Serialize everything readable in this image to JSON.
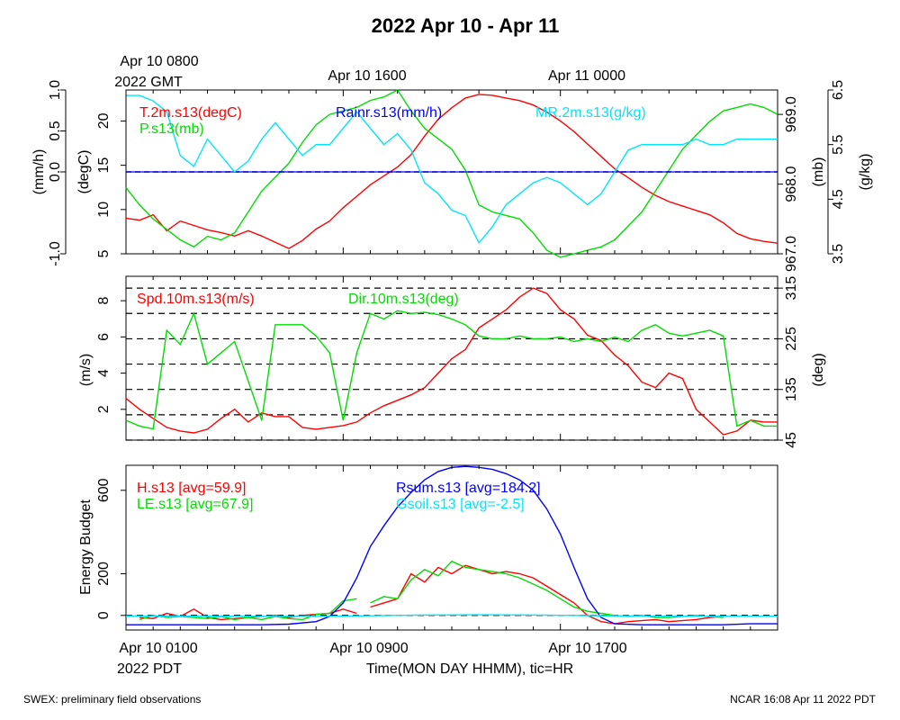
{
  "title": "2022 Apr 10 - Apr 11",
  "top_time_labels": [
    {
      "x": 0,
      "line1": "Apr 10 0800",
      "line2": "2022 GMT"
    },
    {
      "x": 8,
      "line1": "Apr 10 1600",
      "line2": ""
    },
    {
      "x": 16,
      "line1": "Apr 11 0000",
      "line2": ""
    }
  ],
  "bottom_time_labels": [
    {
      "x": 0,
      "line1": "Apr 10 0100",
      "line2": "2022 PDT"
    },
    {
      "x": 8,
      "line1": "Apr 10 0900",
      "line2": ""
    },
    {
      "x": 16,
      "line1": "Apr 10 1700",
      "line2": ""
    }
  ],
  "xlabel": "Time(MON DAY HHMM), tic=HR",
  "footer_left": "SWEX: preliminary field observations",
  "footer_right": "NCAR 16:08 Apr 11 2022 PDT",
  "colors": {
    "red": "#ff0000",
    "green": "#00dd00",
    "blue": "#0000ff",
    "cyan": "#00e5ff",
    "black": "#000000"
  },
  "chart_data": [
    {
      "type": "line",
      "panel": "thermo",
      "x_range": [
        0,
        24
      ],
      "axes": {
        "rain": {
          "label": "(mm/h)",
          "range": [
            -1.0,
            1.0
          ],
          "ticks": [
            "-1.0",
            "0.0",
            "0.5",
            "1.0"
          ],
          "tick_values": [
            -1.0,
            0.0,
            0.5,
            1.0
          ]
        },
        "temp": {
          "label": "(degC)",
          "range": [
            5,
            23.5
          ],
          "ticks": [
            "5",
            "10",
            "15",
            "20"
          ],
          "tick_values": [
            5,
            10,
            15,
            20
          ]
        },
        "pres": {
          "label": "(mb)",
          "range": [
            967.0,
            969.35
          ],
          "ticks": [
            "967.0",
            "968.0",
            "969.0"
          ],
          "tick_values": [
            967.0,
            968.0,
            969.0
          ]
        },
        "mr": {
          "label": "(g/kg)",
          "range": [
            3.5,
            6.5
          ],
          "ticks": [
            "3.5",
            "4.5",
            "5.5",
            "6.5"
          ],
          "tick_values": [
            3.5,
            4.5,
            5.5,
            6.5
          ]
        }
      },
      "series": [
        {
          "name": "T.2m.s13(degC)",
          "color": "red",
          "axis": "temp",
          "x": [
            0,
            0.5,
            1,
            1.5,
            2,
            2.5,
            3,
            3.5,
            4,
            4.5,
            5,
            5.5,
            6,
            6.5,
            7,
            7.5,
            8,
            8.5,
            9,
            9.5,
            10,
            10.5,
            11,
            11.5,
            12,
            12.5,
            13,
            13.5,
            14,
            14.5,
            15,
            15.5,
            16,
            16.5,
            17,
            17.5,
            18,
            18.5,
            19,
            19.5,
            20,
            20.5,
            21,
            21.5,
            22,
            22.5,
            23,
            23.5,
            24
          ],
          "y": [
            9.0,
            8.8,
            9.4,
            7.6,
            8.7,
            8.2,
            7.7,
            7.4,
            7.0,
            7.6,
            7.0,
            6.3,
            5.6,
            6.5,
            7.8,
            8.7,
            10.2,
            11.5,
            12.8,
            13.8,
            14.8,
            16.2,
            18.3,
            20.2,
            21.5,
            22.6,
            23.0,
            22.9,
            22.6,
            22.3,
            21.8,
            21.0,
            20.0,
            18.8,
            17.4,
            16.0,
            14.6,
            13.6,
            12.5,
            11.6,
            10.9,
            10.4,
            9.9,
            9.4,
            8.5,
            7.3,
            6.7,
            6.4,
            6.2
          ]
        },
        {
          "name": "P.s13(mb)",
          "color": "green",
          "axis": "pres",
          "x": [
            0,
            0.5,
            1,
            1.5,
            2,
            2.5,
            3,
            3.5,
            4,
            4.5,
            5,
            5.5,
            6,
            6.5,
            7,
            7.5,
            8,
            8.5,
            9,
            9.5,
            10,
            10.5,
            11,
            11.5,
            12,
            12.5,
            13,
            13.5,
            14,
            14.5,
            15,
            15.5,
            16,
            16.5,
            17,
            17.5,
            18,
            18.5,
            19,
            19.5,
            20,
            20.5,
            21,
            21.5,
            22,
            22.5,
            23,
            23.5,
            24
          ],
          "y": [
            967.95,
            967.7,
            967.5,
            967.35,
            967.2,
            967.1,
            967.25,
            967.2,
            967.3,
            967.6,
            967.9,
            968.1,
            968.3,
            968.6,
            968.85,
            969.0,
            969.05,
            969.1,
            969.2,
            969.25,
            969.35,
            969.05,
            968.8,
            968.65,
            968.5,
            968.2,
            967.7,
            967.6,
            967.55,
            967.5,
            967.3,
            967.05,
            966.95,
            967.0,
            967.05,
            967.1,
            967.2,
            967.4,
            967.6,
            967.9,
            968.2,
            968.5,
            968.7,
            968.9,
            969.05,
            969.1,
            969.15,
            969.1,
            969.0
          ]
        },
        {
          "name": "Rainr.s13(mm/h)",
          "color": "blue",
          "axis": "rain",
          "x": [
            0,
            24
          ],
          "y": [
            0.0,
            0.0
          ]
        },
        {
          "name": "MR.2m.s13(g/kg)",
          "color": "cyan",
          "axis": "mr",
          "x": [
            0,
            0.5,
            1,
            1.5,
            2,
            2.5,
            3,
            3.5,
            4,
            4.5,
            5,
            5.5,
            6,
            6.5,
            7,
            7.5,
            8,
            8.5,
            9,
            9.5,
            10,
            10.5,
            11,
            11.5,
            12,
            12.5,
            13,
            13.5,
            14,
            14.5,
            15,
            15.5,
            16,
            16.5,
            17,
            17.5,
            18,
            18.5,
            19,
            19.5,
            20,
            20.5,
            21,
            21.5,
            22,
            22.5,
            23,
            23.5,
            24
          ],
          "y": [
            6.4,
            6.4,
            6.3,
            6.1,
            5.3,
            5.1,
            5.6,
            5.3,
            5.0,
            5.2,
            5.6,
            5.9,
            5.6,
            5.3,
            5.5,
            5.5,
            5.8,
            6.1,
            5.8,
            5.5,
            5.7,
            5.4,
            4.8,
            4.6,
            4.3,
            4.2,
            3.7,
            4.0,
            4.4,
            4.6,
            4.8,
            4.9,
            4.8,
            4.6,
            4.4,
            4.6,
            5.0,
            5.4,
            5.5,
            5.5,
            5.5,
            5.5,
            5.6,
            5.5,
            5.5,
            5.6,
            5.6,
            5.6,
            5.6
          ]
        }
      ],
      "legend": [
        {
          "text": "T.2m.s13(degC)",
          "color": "red"
        },
        {
          "text": "P.s13(mb)",
          "color": "green"
        },
        {
          "text": "Rainr.s13(mm/h)",
          "color": "blue"
        },
        {
          "text": "MR.2m.s13(g/kg)",
          "color": "cyan"
        }
      ]
    },
    {
      "type": "line",
      "panel": "wind",
      "x_range": [
        0,
        24
      ],
      "axes": {
        "spd": {
          "label": "(m/s)",
          "range": [
            0.3,
            9.35
          ],
          "ticks": [
            "2",
            "4",
            "6",
            "8"
          ],
          "tick_values": [
            2,
            4,
            6,
            8
          ]
        },
        "dir": {
          "label": "(deg)",
          "range": [
            45,
            336
          ],
          "ticks": [
            "45",
            "135",
            "225",
            "315"
          ],
          "tick_values": [
            45,
            135,
            225,
            315
          ]
        }
      },
      "dir_gridlines": [
        45,
        90,
        135,
        180,
        225,
        270,
        315
      ],
      "series": [
        {
          "name": "Spd.10m.s13(m/s)",
          "color": "red",
          "axis": "spd",
          "x": [
            0,
            0.5,
            1,
            1.5,
            2,
            2.5,
            3,
            3.5,
            4,
            4.5,
            5,
            5.5,
            6,
            6.5,
            7,
            7.5,
            8,
            8.5,
            9,
            9.5,
            10,
            10.5,
            11,
            11.5,
            12,
            12.5,
            13,
            13.5,
            14,
            14.5,
            15,
            15.5,
            16,
            16.5,
            17,
            17.5,
            18,
            18.5,
            19,
            19.5,
            20,
            20.5,
            21,
            21.5,
            22,
            22.5,
            23,
            23.5,
            24
          ],
          "y": [
            2.6,
            2.0,
            1.5,
            1.0,
            0.8,
            0.7,
            0.9,
            1.5,
            2.0,
            1.3,
            1.8,
            1.6,
            1.6,
            1.0,
            0.9,
            1.0,
            1.1,
            1.3,
            1.8,
            2.2,
            2.5,
            2.8,
            3.2,
            4.0,
            4.8,
            5.3,
            6.5,
            7.0,
            7.5,
            8.2,
            8.7,
            8.4,
            7.5,
            7.0,
            6.1,
            5.8,
            5.0,
            4.4,
            3.5,
            3.2,
            4.0,
            3.7,
            2.0,
            1.3,
            0.6,
            0.8,
            1.4,
            1.3,
            1.3
          ]
        },
        {
          "name": "Dir.10m.s13(deg)",
          "color": "green",
          "axis": "dir",
          "x": [
            0,
            0.5,
            1,
            1.5,
            2,
            2.5,
            3,
            3.5,
            4,
            4.5,
            5,
            5.5,
            6,
            6.5,
            7,
            7.5,
            8,
            8.5,
            9,
            9.5,
            10,
            10.5,
            11,
            11.5,
            12,
            12.5,
            13,
            13.5,
            14,
            14.5,
            15,
            15.5,
            16,
            16.5,
            17,
            17.5,
            18,
            18.5,
            19,
            19.5,
            20,
            20.5,
            21,
            21.5,
            22,
            22.5,
            23,
            23.5,
            24
          ],
          "y": [
            80,
            70,
            65,
            240,
            215,
            270,
            180,
            200,
            220,
            150,
            80,
            250,
            250,
            250,
            230,
            200,
            80,
            200,
            270,
            260,
            275,
            270,
            272,
            268,
            260,
            250,
            230,
            225,
            225,
            230,
            225,
            225,
            228,
            220,
            225,
            220,
            228,
            220,
            240,
            250,
            235,
            230,
            235,
            240,
            230,
            70,
            80,
            70,
            70
          ]
        }
      ],
      "legend": [
        {
          "text": "Spd.10m.s13(m/s)",
          "color": "red"
        },
        {
          "text": "Dir.10m.s13(deg)",
          "color": "green"
        }
      ]
    },
    {
      "type": "line",
      "panel": "energy",
      "x_range": [
        0,
        24
      ],
      "ylabel": "Energy Budget",
      "ylim": [
        -70,
        720
      ],
      "ticks": [
        "0",
        "200",
        "600"
      ],
      "tick_values": [
        0,
        200,
        600
      ],
      "series": [
        {
          "name": "H.s13",
          "color": "red",
          "x": [
            0.5,
            1,
            1.5,
            2,
            2.5,
            3,
            3.5,
            4,
            4.5,
            5,
            5.5,
            6,
            6.5,
            7,
            7.5,
            8,
            8.5,
            9,
            9.5,
            10,
            10.5,
            11,
            11.5,
            12,
            12.5,
            13,
            13.5,
            14,
            14.5,
            15,
            15.5,
            16,
            16.5,
            17,
            17.5,
            18,
            18.5,
            19,
            19.5,
            20,
            20.5,
            21,
            21.5,
            22
          ],
          "y": [
            -10,
            -15,
            10,
            -5,
            30,
            -10,
            -20,
            -15,
            -10,
            -5,
            0,
            -10,
            0,
            5,
            10,
            30,
            10,
            40,
            60,
            80,
            200,
            160,
            230,
            200,
            240,
            220,
            200,
            210,
            200,
            180,
            140,
            100,
            60,
            0,
            -30,
            -40,
            -30,
            -25,
            -20,
            -30,
            -25,
            -20,
            -10,
            -5
          ],
          "gaps_after": [
            8.5
          ]
        },
        {
          "name": "LE.s13",
          "color": "green",
          "x": [
            0.5,
            1,
            1.5,
            2,
            2.5,
            3,
            3.5,
            4,
            4.5,
            5,
            5.5,
            6,
            6.5,
            7,
            7.5,
            8,
            8.5,
            9,
            9.5,
            10,
            10.5,
            11,
            11.5,
            12,
            12.5,
            13,
            13.5,
            14,
            14.5,
            15,
            15.5,
            16,
            16.5,
            17,
            17.5,
            18,
            18.5,
            19,
            19.5,
            20,
            20.5,
            21,
            21.5,
            22
          ],
          "y": [
            -20,
            0,
            -10,
            -5,
            -10,
            -15,
            -5,
            -20,
            -10,
            -20,
            -5,
            -15,
            -20,
            5,
            10,
            70,
            80,
            60,
            90,
            80,
            170,
            220,
            190,
            260,
            230,
            220,
            210,
            200,
            180,
            150,
            120,
            80,
            40,
            20,
            10,
            0,
            -5,
            0,
            -10,
            -10,
            -5,
            0,
            -5,
            -10
          ],
          "gaps_after": [
            8.5
          ]
        },
        {
          "name": "Rsum.s13",
          "color": "blue",
          "x": [
            0,
            1,
            2,
            3,
            4,
            5,
            6,
            7,
            7.5,
            8,
            8.5,
            9,
            9.5,
            10,
            10.5,
            11,
            11.5,
            12,
            12.5,
            13,
            13.5,
            14,
            14.5,
            15,
            15.5,
            16,
            16.5,
            17,
            17.5,
            18,
            19,
            20,
            21,
            22,
            23,
            24
          ],
          "y": [
            -45,
            -45,
            -45,
            -45,
            -45,
            -45,
            -42,
            -30,
            -5,
            60,
            180,
            330,
            430,
            520,
            590,
            650,
            690,
            710,
            715,
            710,
            700,
            680,
            650,
            600,
            510,
            390,
            230,
            80,
            -10,
            -40,
            -45,
            -45,
            -45,
            -45,
            -40,
            -40
          ]
        },
        {
          "name": "Gsoil.s13",
          "color": "cyan",
          "x": [
            0,
            4,
            7,
            9,
            11,
            13,
            15,
            17,
            19,
            21,
            24
          ],
          "y": [
            -3,
            -4,
            -5,
            -2,
            2,
            3,
            2,
            -1,
            -3,
            -4,
            -4
          ]
        }
      ],
      "zero_line": 0,
      "legend": [
        {
          "text": "H.s13 [avg=59.9]",
          "color": "red"
        },
        {
          "text": "LE.s13 [avg=67.9]",
          "color": "green"
        },
        {
          "text": "Rsum.s13 [avg=184.2]",
          "color": "blue"
        },
        {
          "text": "Gsoil.s13 [avg=-2.5]",
          "color": "cyan"
        }
      ]
    }
  ]
}
